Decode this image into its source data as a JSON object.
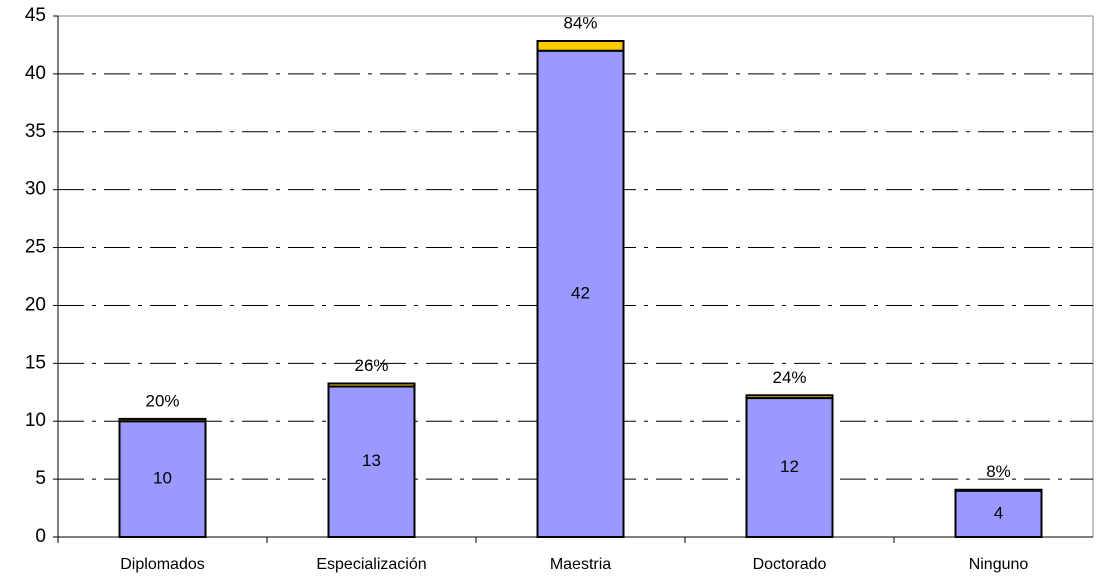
{
  "chart_data": {
    "type": "stacked_bar",
    "categories": [
      "Diplomados",
      "Especialización",
      "Maestria",
      "Doctorado",
      "Ninguno"
    ],
    "series": [
      {
        "color": "#9999ff",
        "values": [
          10,
          13,
          42,
          12,
          4
        ]
      },
      {
        "color": "#ffcc00",
        "values": [
          0.2,
          0.26,
          0.84,
          0.24,
          0.08
        ],
        "value_labels": [
          "20%",
          "26%",
          "84%",
          "24%",
          "8%"
        ]
      }
    ],
    "ylim": [
      0,
      45
    ],
    "yticks": [
      0,
      5,
      10,
      15,
      20,
      25,
      30,
      35,
      40,
      45
    ],
    "grid": true
  }
}
